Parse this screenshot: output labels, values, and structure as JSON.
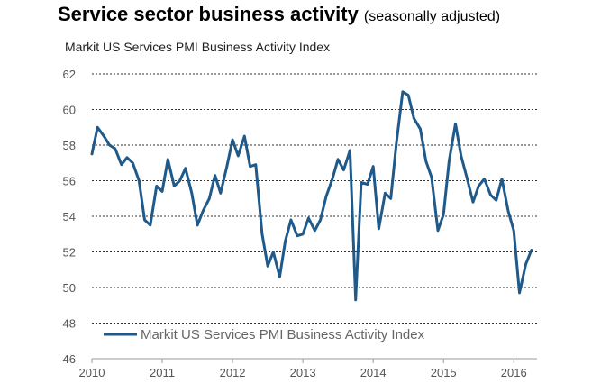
{
  "title": "Service sector business activity",
  "title_note": "(seasonally adjusted)",
  "subtitle": "Markit US Services PMI Business Activity Index",
  "colors": {
    "line": "#1f5a8a",
    "grid": "#333333",
    "axis": "#999999"
  },
  "chart_data": {
    "type": "line",
    "title": "Service sector business activity",
    "subtitle": "Markit US Services PMI Business Activity Index",
    "xlabel": "",
    "ylabel": "",
    "ylim": [
      46,
      62
    ],
    "xlim": [
      2010,
      2016.33
    ],
    "yticks": [
      46,
      48,
      50,
      52,
      54,
      56,
      58,
      60,
      62
    ],
    "xticks": [
      2010,
      2011,
      2012,
      2013,
      2014,
      2015,
      2016
    ],
    "grid": "horizontal dashed",
    "legend_position": "bottom-left",
    "series": [
      {
        "name": "Markit US Services PMI Business Activity Index",
        "x": [
          2010.0,
          2010.08,
          2010.17,
          2010.25,
          2010.33,
          2010.42,
          2010.5,
          2010.58,
          2010.67,
          2010.75,
          2010.83,
          2010.92,
          2011.0,
          2011.08,
          2011.17,
          2011.25,
          2011.33,
          2011.42,
          2011.5,
          2011.58,
          2011.67,
          2011.75,
          2011.83,
          2011.92,
          2012.0,
          2012.08,
          2012.17,
          2012.25,
          2012.33,
          2012.42,
          2012.5,
          2012.58,
          2012.67,
          2012.75,
          2012.83,
          2012.92,
          2013.0,
          2013.08,
          2013.17,
          2013.25,
          2013.33,
          2013.42,
          2013.5,
          2013.58,
          2013.67,
          2013.75,
          2013.83,
          2013.92,
          2014.0,
          2014.08,
          2014.17,
          2014.25,
          2014.33,
          2014.42,
          2014.5,
          2014.58,
          2014.67,
          2014.75,
          2014.83,
          2014.92,
          2015.0,
          2015.08,
          2015.17,
          2015.25,
          2015.33,
          2015.42,
          2015.5,
          2015.58,
          2015.67,
          2015.75,
          2015.83,
          2015.92,
          2016.0,
          2016.08,
          2016.17,
          2016.25
        ],
        "values": [
          57.5,
          59.0,
          58.5,
          58.0,
          57.8,
          56.9,
          57.3,
          57.0,
          56.0,
          53.8,
          53.5,
          55.7,
          55.4,
          57.2,
          55.7,
          56.0,
          56.7,
          55.3,
          53.5,
          54.3,
          55.0,
          56.3,
          55.3,
          56.8,
          58.3,
          57.4,
          58.5,
          56.8,
          56.9,
          53.0,
          51.2,
          52.0,
          50.6,
          52.6,
          53.8,
          52.9,
          53.0,
          53.9,
          53.2,
          53.8,
          55.1,
          56.1,
          57.2,
          56.6,
          57.7,
          49.3,
          55.9,
          55.8,
          56.8,
          53.3,
          55.3,
          55.0,
          58.1,
          61.0,
          60.8,
          59.5,
          58.9,
          57.1,
          56.2,
          53.2,
          54.1,
          57.1,
          59.2,
          57.4,
          56.2,
          54.8,
          55.7,
          56.1,
          55.2,
          54.9,
          56.1,
          54.3,
          53.2,
          49.7,
          51.3,
          52.1
        ]
      }
    ]
  }
}
